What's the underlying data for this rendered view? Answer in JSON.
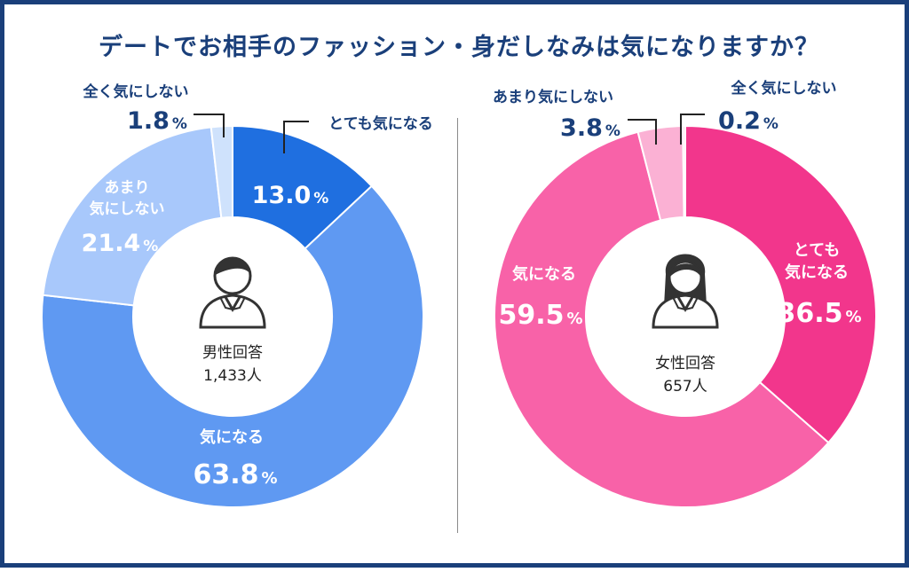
{
  "title": "デートでお相手のファッション・身だしなみは気になりますか？",
  "chart_data": [
    {
      "type": "pie",
      "group": "male",
      "center_label": "男性回答",
      "center_count": "1,433人",
      "categories": [
        "とても気になる",
        "気になる",
        "あまり気にしない",
        "全く気にしない"
      ],
      "values": [
        13.0,
        63.8,
        21.4,
        1.8
      ],
      "value_labels": [
        "13.0",
        "63.8",
        "21.4",
        "1.8"
      ],
      "unit": "%",
      "colors": [
        "#1f6fe0",
        "#5f99f2",
        "#a8c8fb",
        "#cfe2fc"
      ]
    },
    {
      "type": "pie",
      "group": "female",
      "center_label": "女性回答",
      "center_count": "657人",
      "categories": [
        "とても気になる",
        "気になる",
        "あまり気にしない",
        "全く気にしない"
      ],
      "values": [
        36.5,
        59.5,
        3.8,
        0.2
      ],
      "value_labels": [
        "36.5",
        "59.5",
        "3.8",
        "0.2"
      ],
      "unit": "%",
      "colors": [
        "#f2368c",
        "#f862a8",
        "#fbb1d4",
        "#fdd3e7"
      ]
    }
  ],
  "male_labels": {
    "very": "とても気になる",
    "mind_1": "気になる",
    "notmuch_1": "あまり",
    "notmuch_2": "気にしない",
    "notatall": "全く気にしない"
  },
  "female_labels": {
    "very_1": "とても",
    "very_2": "気になる",
    "mind": "気になる",
    "notmuch": "あまり気にしない",
    "notatall": "全く気にしない"
  },
  "icons": {
    "male": "man-avatar-icon",
    "female": "woman-avatar-icon"
  }
}
